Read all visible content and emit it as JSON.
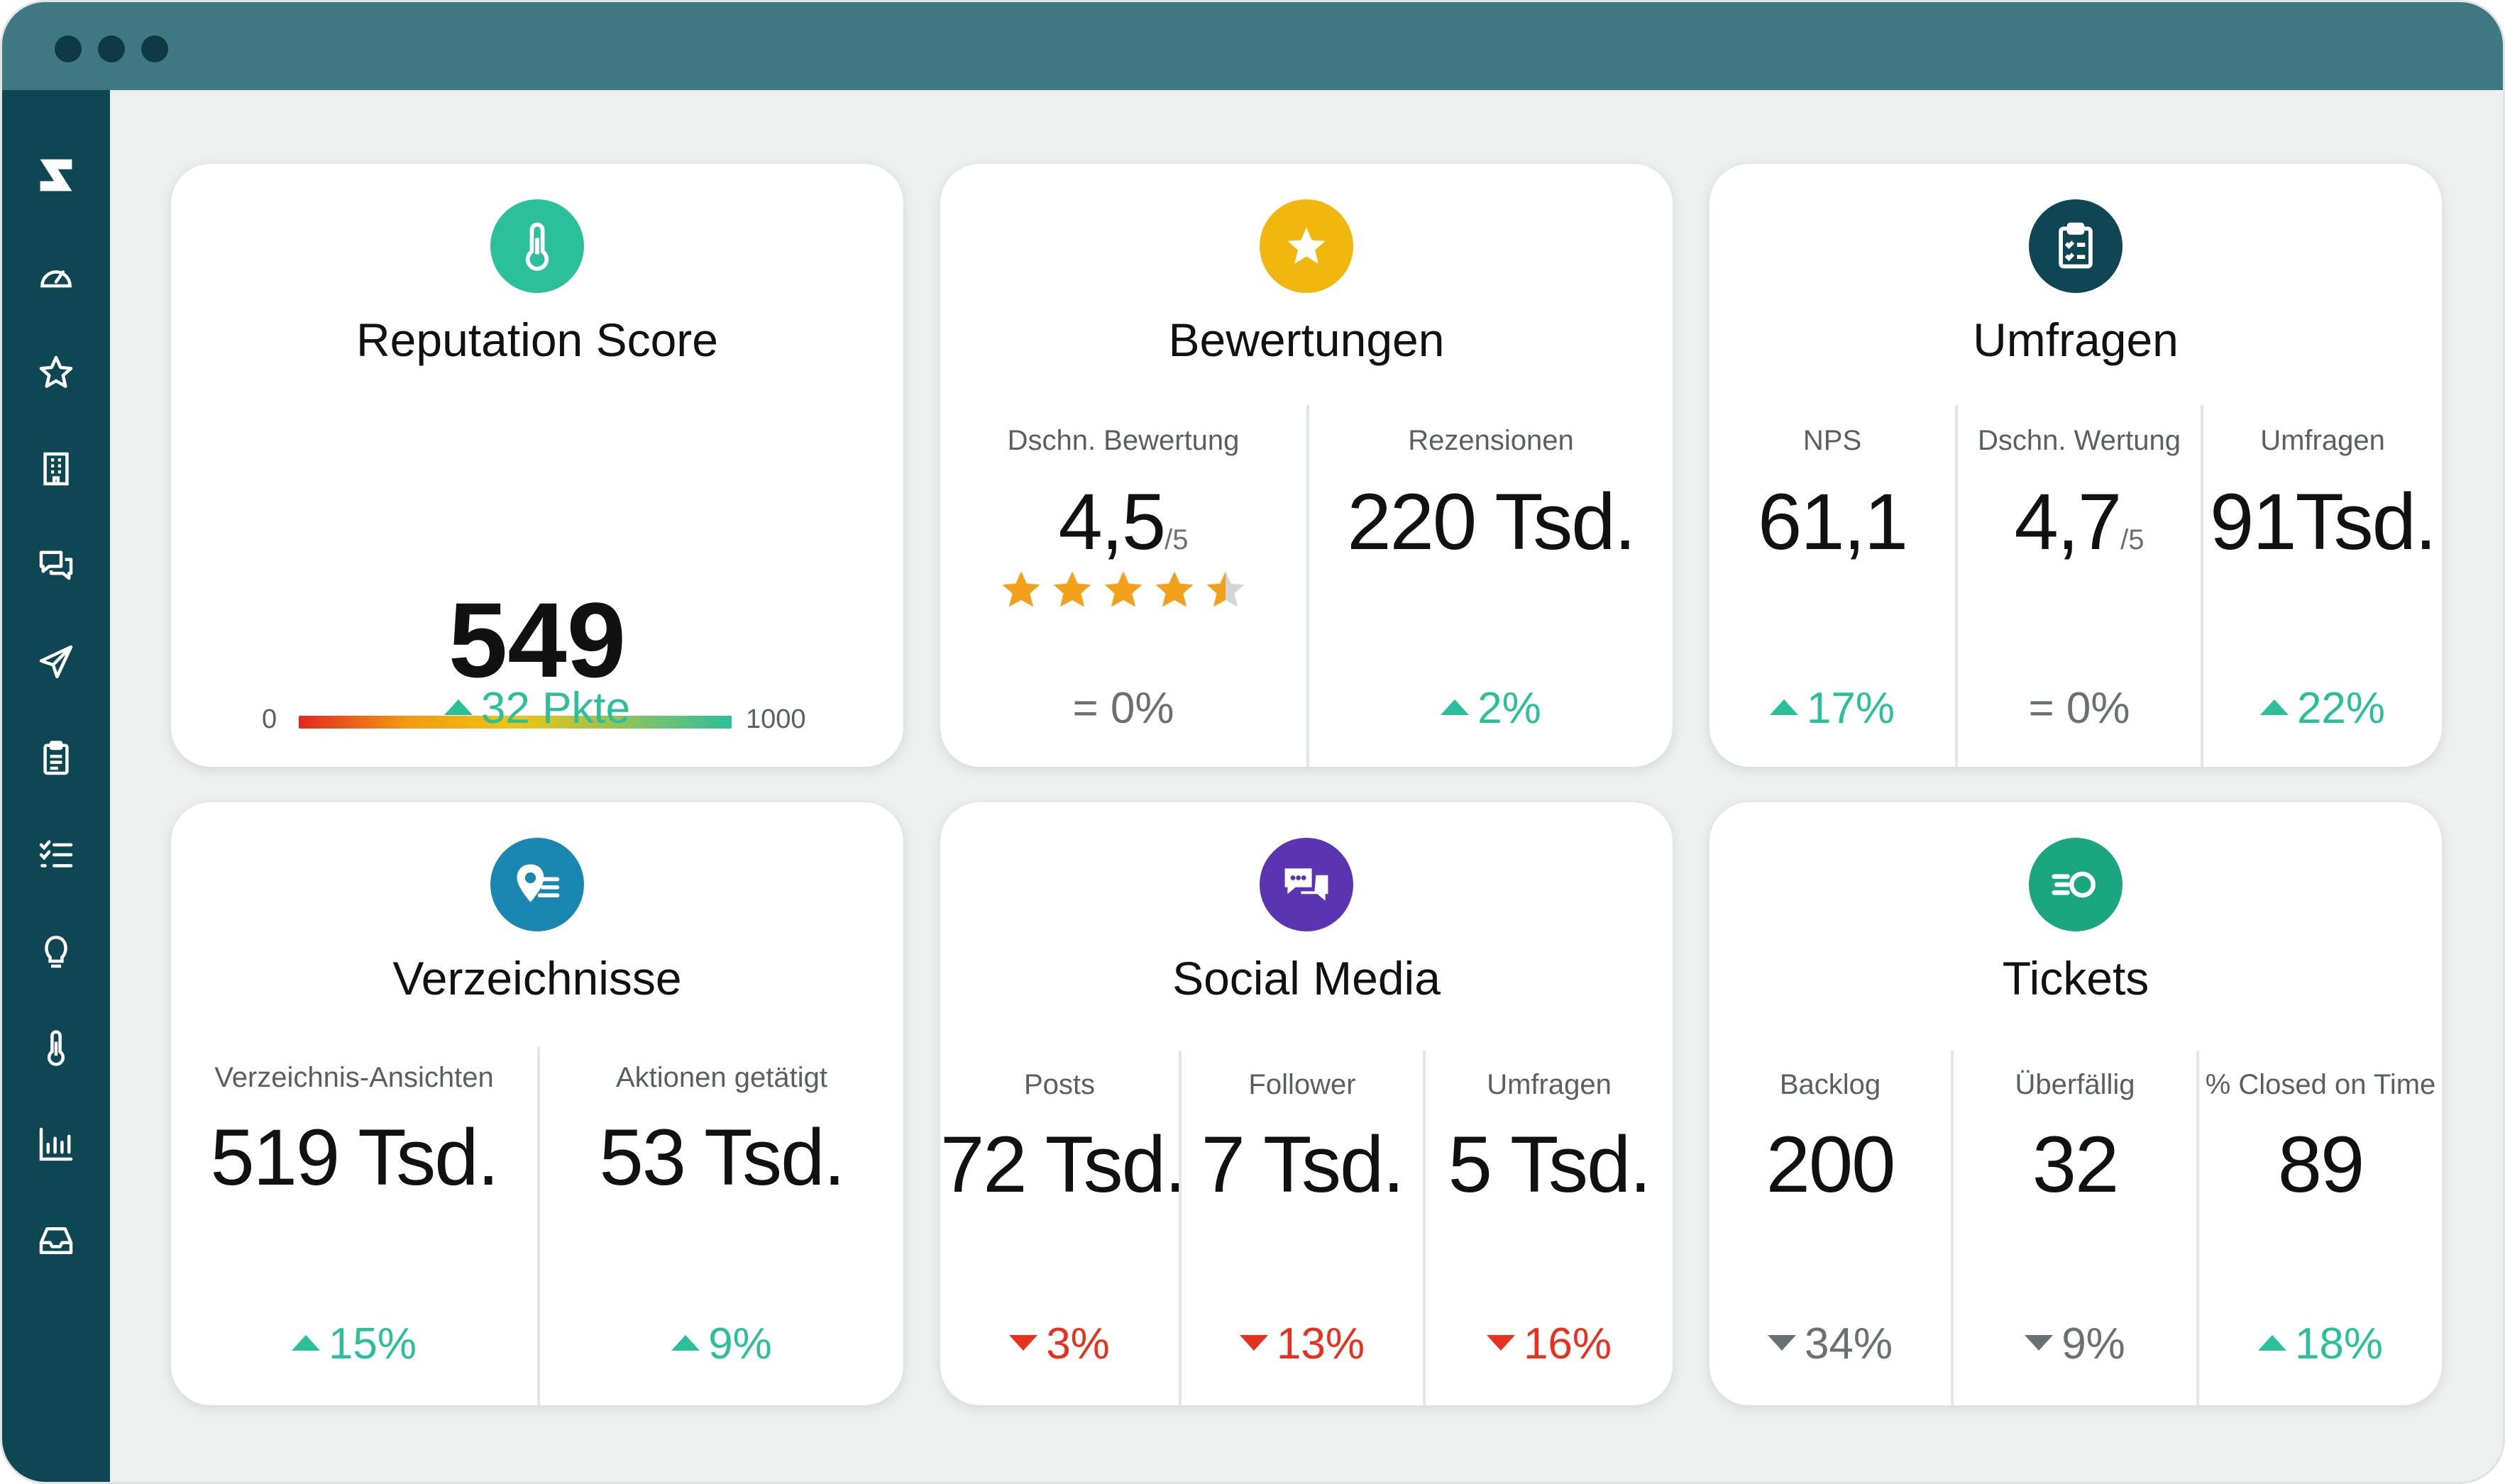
{
  "colors": {
    "titlebar": "#3f7882",
    "sidebar": "#0e4654",
    "up": "#2cc09a",
    "down": "#e4321f",
    "neutral": "#6b7072"
  },
  "sidebar": {
    "items": [
      {
        "icon": "logo-icon"
      },
      {
        "icon": "dashboard-icon"
      },
      {
        "icon": "star-icon"
      },
      {
        "icon": "building-icon"
      },
      {
        "icon": "chat-icon"
      },
      {
        "icon": "send-icon"
      },
      {
        "icon": "clipboard-icon"
      },
      {
        "icon": "checklist-icon"
      },
      {
        "icon": "lightbulb-icon"
      },
      {
        "icon": "thermometer-icon"
      },
      {
        "icon": "bar-chart-icon"
      },
      {
        "icon": "inbox-icon"
      }
    ]
  },
  "cards": {
    "reputation": {
      "icon": "thermometer-icon",
      "title": "Reputation Score",
      "score": "549",
      "range_min": "0",
      "range_max": "1000",
      "trend": "32 Pkte",
      "trend_dir": "up"
    },
    "reviews": {
      "icon": "star-icon",
      "title": "Bewertungen",
      "avg_label": "Dschn. Bewertung",
      "avg_value": "4,5",
      "avg_suffix": "/5",
      "stars": 4.5,
      "avg_trend": "0%",
      "avg_trend_dir": "neutral",
      "count_label": "Rezensionen",
      "count_value": "220 Tsd.",
      "count_trend": "2%",
      "count_trend_dir": "up"
    },
    "surveys": {
      "icon": "clipboard-icon",
      "title": "Umfragen",
      "nps_label": "NPS",
      "nps_value": "61,1",
      "nps_trend": "17%",
      "avg_label": "Dschn. Wertung",
      "avg_value": "4,7",
      "avg_suffix": "/5",
      "avg_trend": "0%",
      "count_label": "Umfragen",
      "count_value": "91Tsd.",
      "count_trend": "22%"
    },
    "listings": {
      "icon": "location-list-icon",
      "title": "Verzeichnisse",
      "views_label": "Verzeichnis-Ansichten",
      "views_value": "519 Tsd.",
      "views_trend": "15%",
      "actions_label": "Aktionen getätigt",
      "actions_value": "53 Tsd.",
      "actions_trend": "9%"
    },
    "social": {
      "icon": "chat-bubbles-icon",
      "title": "Social Media",
      "posts_label": "Posts",
      "posts_value": "72 Tsd.",
      "posts_trend": "3%",
      "followers_label": "Follower",
      "followers_value": "7 Tsd.",
      "followers_trend": "13%",
      "surveys_label": "Umfragen",
      "surveys_value": "5 Tsd.",
      "surveys_trend": "16%"
    },
    "tickets": {
      "icon": "ticket-speed-icon",
      "title": "Tickets",
      "backlog_label": "Backlog",
      "backlog_value": "200",
      "backlog_trend": "34%",
      "overdue_label": "Überfällig",
      "overdue_value": "32",
      "overdue_trend": "9%",
      "closed_label": "% Closed on Time",
      "closed_value": "89",
      "closed_trend": "18%"
    }
  }
}
